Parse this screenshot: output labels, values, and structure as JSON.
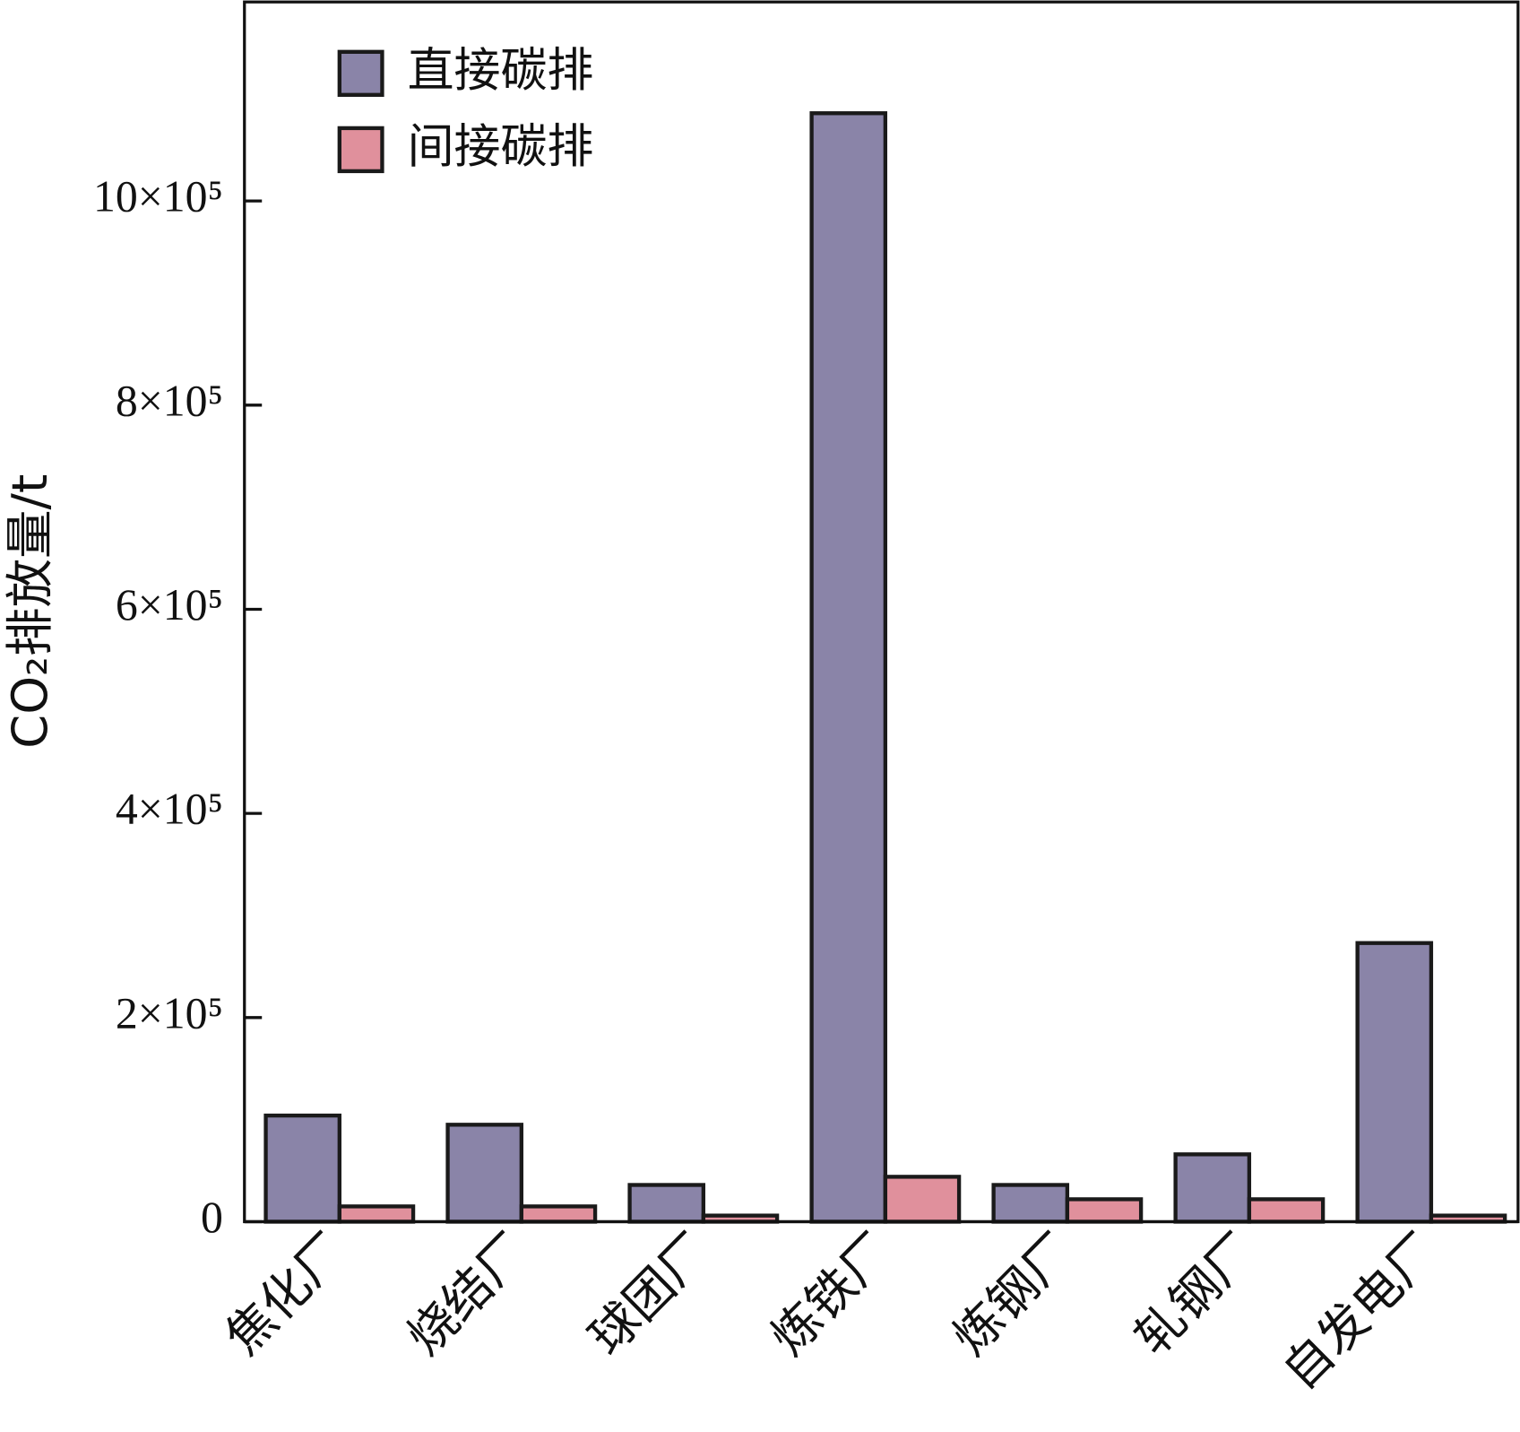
{
  "chart_data": {
    "type": "bar",
    "y_label": "CO₂排放量/t",
    "categories": [
      "焦化厂",
      "烧结厂",
      "球团厂",
      "炼铁厂",
      "炼钢厂",
      "轧钢厂",
      "自发电厂"
    ],
    "series": [
      {
        "name": "直接碳排",
        "color": "#8a84a8",
        "values": [
          104000,
          95000,
          36000,
          1086000,
          36000,
          66000,
          273000
        ]
      },
      {
        "name": "间接碳排",
        "color": "#e0909c",
        "values": [
          15000,
          15000,
          6000,
          44000,
          22000,
          22000,
          6000
        ]
      }
    ],
    "ylim": [
      0,
      1195000
    ],
    "yticks": [
      0,
      {
        "value": 200000,
        "label": "2×10⁵"
      },
      {
        "value": 400000,
        "label": "4×10⁵"
      },
      {
        "value": 600000,
        "label": "6×10⁵"
      },
      {
        "value": 800000,
        "label": "8×10⁵"
      },
      {
        "value": 1000000,
        "label": "10×10⁵"
      }
    ],
    "legend": "upper left"
  }
}
